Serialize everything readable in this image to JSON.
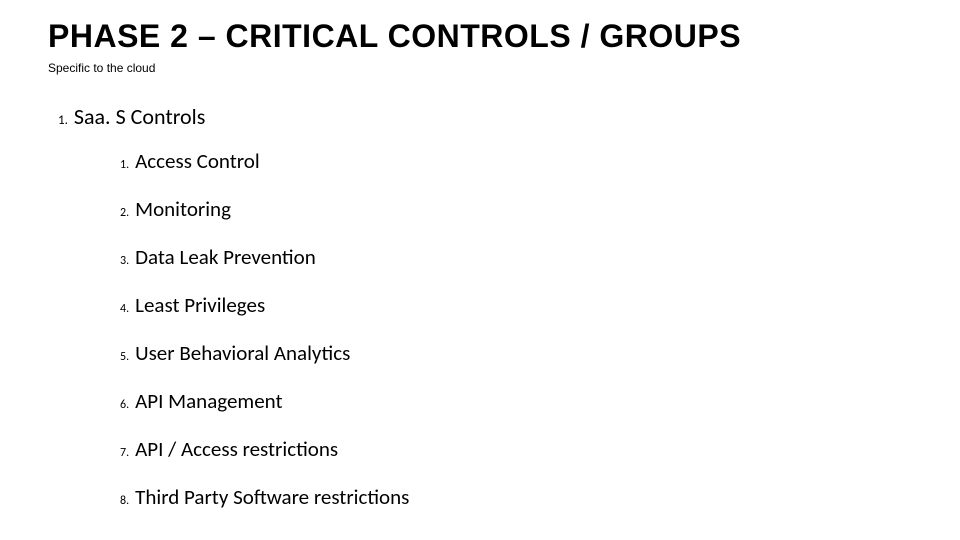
{
  "title": "PHASE 2 – CRITICAL CONTROLS / GROUPS",
  "subtitle": "Specific to the cloud",
  "colors": {
    "background": "#ffffff",
    "text": "#000000"
  },
  "typography": {
    "title_font": "Arial",
    "title_fontsize": 32,
    "title_weight": 700,
    "subtitle_fontsize": 12,
    "body_font": "Calibri",
    "outer_item_fontsize": 22,
    "inner_item_fontsize": 21,
    "list_number_fontsize": 12
  },
  "outer": {
    "number": "1.",
    "label": "Saa. S Controls"
  },
  "inner_items": [
    {
      "number": "1.",
      "label": "Access Control"
    },
    {
      "number": "2.",
      "label": "Monitoring"
    },
    {
      "number": "3.",
      "label": "Data Leak Prevention"
    },
    {
      "number": "4.",
      "label": "Least Privileges"
    },
    {
      "number": "5.",
      "label": "User Behavioral Analytics"
    },
    {
      "number": "6.",
      "label": "API Management"
    },
    {
      "number": "7.",
      "label": "API / Access restrictions"
    },
    {
      "number": "8.",
      "label": "Third Party Software restrictions"
    }
  ]
}
